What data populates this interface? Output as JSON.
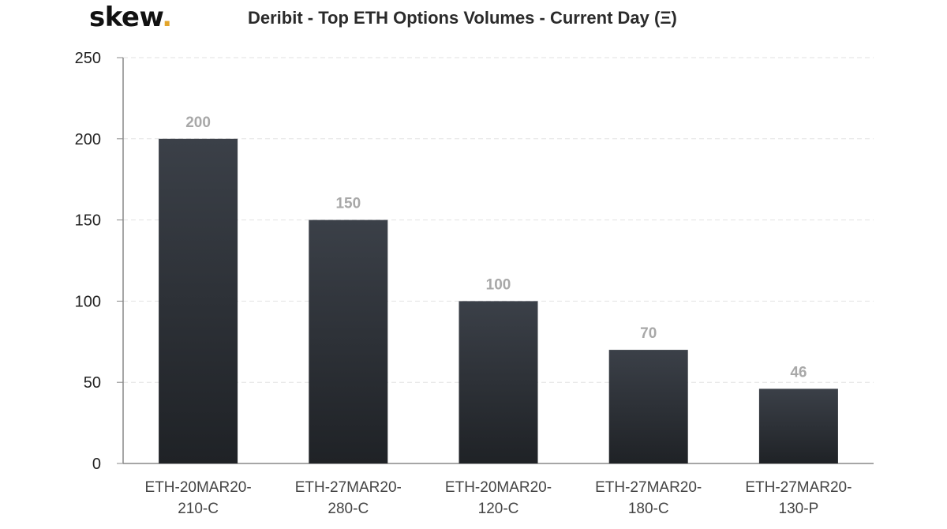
{
  "brand": {
    "logo_text": "skew",
    "logo_dot": ".",
    "accent_color": "#e3a52b"
  },
  "chart_data": {
    "type": "bar",
    "title": "Deribit - Top ETH Options Volumes - Current Day (Ξ)",
    "xlabel": "",
    "ylabel": "",
    "categories": [
      [
        "ETH-20MAR20-",
        "210-C"
      ],
      [
        "ETH-27MAR20-",
        "280-C"
      ],
      [
        "ETH-20MAR20-",
        "120-C"
      ],
      [
        "ETH-27MAR20-",
        "180-C"
      ],
      [
        "ETH-27MAR20-",
        "130-P"
      ]
    ],
    "values": [
      200,
      150,
      100,
      70,
      46
    ],
    "data_labels": [
      "200",
      "150",
      "100",
      "70",
      "46"
    ],
    "ylim": [
      0,
      250
    ],
    "yticks": [
      0,
      50,
      100,
      150,
      200,
      250
    ],
    "grid": true,
    "legend": "none",
    "colors": {
      "bar_top": "#3b4048",
      "bar_bottom": "#1f2226",
      "grid": "#e2e2e2",
      "axis": "#888888",
      "data_label": "#a8a8a8"
    }
  }
}
